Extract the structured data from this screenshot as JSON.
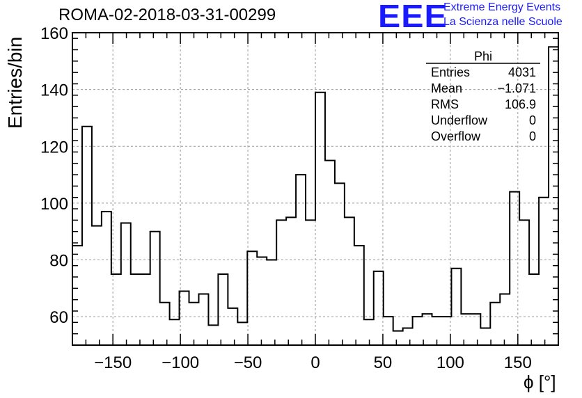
{
  "title": "ROMA-02-2018-03-31-00299",
  "logo": {
    "text": "EEE",
    "line1": "Extreme Energy Events",
    "line2": "La Scienza nelle Scuole",
    "color": "#1a1aff"
  },
  "stats": {
    "name": "Phi",
    "rows": [
      {
        "label": "Entries",
        "value": "4031"
      },
      {
        "label": "Mean",
        "value": "−1.071"
      },
      {
        "label": "RMS",
        "value": "106.9"
      },
      {
        "label": "Underflow",
        "value": "0"
      },
      {
        "label": "Overflow",
        "value": "0"
      }
    ]
  },
  "chart_data": {
    "type": "histogram",
    "title": "ROMA-02-2018-03-31-00299",
    "xlabel": "ϕ [°]",
    "ylabel": "Entries/bin",
    "xlim": [
      -180,
      180
    ],
    "ylim": [
      50,
      160
    ],
    "bin_width": 7.2,
    "xticks": [
      -150,
      -100,
      -50,
      0,
      50,
      100,
      150
    ],
    "xtick_labels": [
      "−150",
      "−100",
      "−50",
      "0",
      "50",
      "100",
      "150"
    ],
    "yticks": [
      60,
      80,
      100,
      120,
      140,
      160
    ],
    "ytick_labels": [
      "60",
      "80",
      "100",
      "120",
      "140",
      "160"
    ],
    "grid": true,
    "values": [
      85,
      127,
      92,
      97,
      75,
      93,
      75,
      75,
      90,
      65,
      59,
      69,
      65,
      68,
      57,
      75,
      63,
      58,
      83,
      81,
      80,
      94,
      95,
      110,
      94,
      139,
      115,
      107,
      95,
      85,
      59,
      76,
      60,
      55,
      56,
      60,
      61,
      60,
      60,
      77,
      61,
      61,
      56,
      65,
      68,
      104,
      94,
      75,
      102,
      155
    ]
  }
}
